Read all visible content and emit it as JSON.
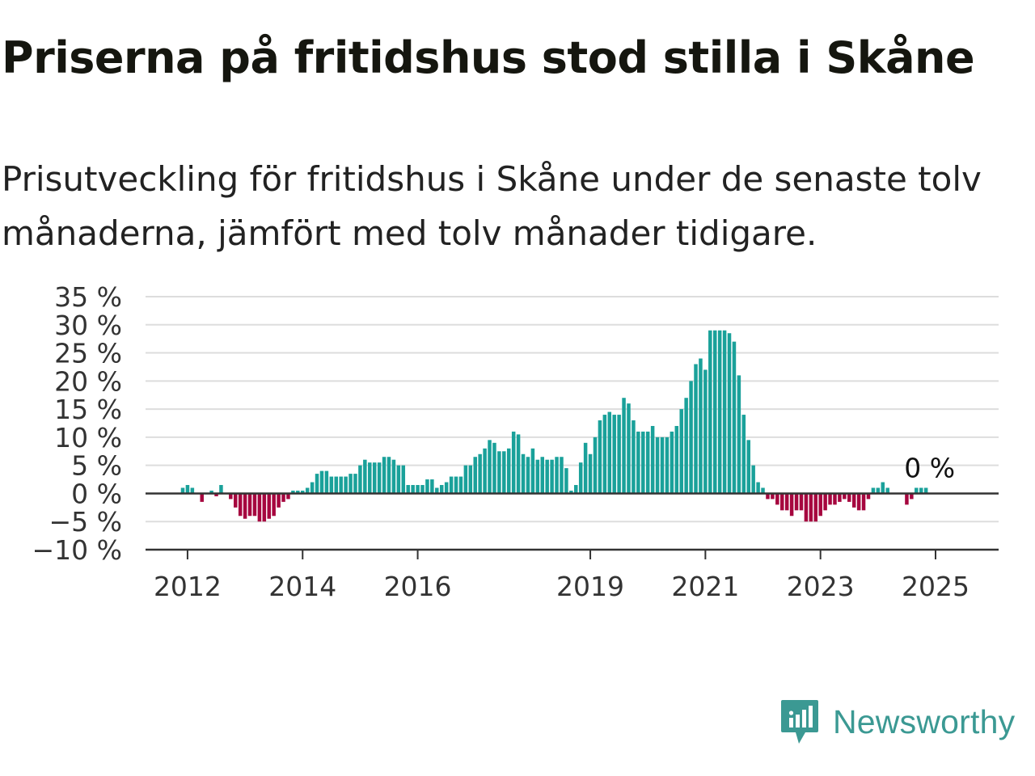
{
  "title": "Priserna på fritidshus stod stilla i Skåne",
  "subtitle": "Prisutveckling för fritidshus i Skåne under de senaste tolv månaderna, jämfört med tolv månader tidigare.",
  "brand": {
    "name": "Newsworthy",
    "icon": "newsworthy-logo-icon"
  },
  "colors": {
    "positive": "#1aa19a",
    "negative": "#a6063f",
    "grid": "#dddddd",
    "axis": "#333333",
    "brand": "#3b9993"
  },
  "chart_data": {
    "type": "bar",
    "x_start": "2011-12",
    "x_step": "month",
    "ylim": [
      -10,
      35
    ],
    "yticks": [
      -10,
      -5,
      0,
      5,
      10,
      15,
      20,
      25,
      30,
      35
    ],
    "ytick_labels": [
      "−10 %",
      "−5 %",
      "0 %",
      "5 %",
      "10 %",
      "15 %",
      "20 %",
      "25 %",
      "30 %",
      "35 %"
    ],
    "xtick_labels": [
      "2012",
      "2014",
      "2016",
      "2019",
      "2021",
      "2023",
      "2025"
    ],
    "xtick_dates": [
      "2012-01",
      "2014-01",
      "2016-01",
      "2019-01",
      "2021-01",
      "2023-01",
      "2025-01"
    ],
    "grid": true,
    "last_value_label": "0 %",
    "values": [
      1.0,
      1.5,
      1.0,
      0.0,
      -1.5,
      0.0,
      0.5,
      -0.5,
      1.5,
      0.0,
      -1.0,
      -2.5,
      -4.0,
      -4.5,
      -4.0,
      -4.0,
      -5.0,
      -5.0,
      -4.5,
      -4.0,
      -2.5,
      -1.5,
      -1.0,
      0.5,
      0.5,
      0.5,
      1.0,
      2.0,
      3.5,
      4.0,
      4.0,
      3.0,
      3.0,
      3.0,
      3.0,
      3.5,
      3.5,
      5.0,
      6.0,
      5.5,
      5.5,
      5.5,
      6.5,
      6.5,
      6.0,
      5.0,
      5.0,
      1.5,
      1.5,
      1.5,
      1.5,
      2.5,
      2.5,
      1.0,
      1.5,
      2.0,
      3.0,
      3.0,
      3.0,
      5.0,
      5.0,
      6.5,
      7.0,
      8.0,
      9.5,
      9.0,
      7.5,
      7.5,
      8.0,
      11.0,
      10.5,
      7.0,
      6.5,
      8.0,
      6.0,
      6.5,
      6.0,
      6.0,
      6.5,
      6.5,
      4.5,
      0.5,
      1.5,
      5.5,
      9.0,
      7.0,
      10.0,
      13.0,
      14.0,
      14.5,
      14.0,
      14.0,
      17.0,
      16.0,
      13.0,
      11.0,
      11.0,
      11.0,
      12.0,
      10.0,
      10.0,
      10.0,
      11.0,
      12.0,
      15.0,
      17.0,
      20.0,
      23.0,
      24.0,
      22.0,
      29.0,
      29.0,
      29.0,
      29.0,
      28.5,
      27.0,
      21.0,
      14.0,
      9.5,
      5.0,
      2.0,
      1.0,
      -1.0,
      -1.0,
      -2.0,
      -3.0,
      -3.0,
      -4.0,
      -3.0,
      -3.0,
      -5.0,
      -5.0,
      -5.0,
      -4.0,
      -3.0,
      -2.0,
      -2.0,
      -1.5,
      -1.0,
      -1.5,
      -2.5,
      -3.0,
      -3.0,
      -1.0,
      1.0,
      1.0,
      2.0,
      1.0,
      0.0,
      0.0,
      0.0,
      -2.0,
      -1.0,
      1.0,
      1.0,
      1.0
    ]
  }
}
